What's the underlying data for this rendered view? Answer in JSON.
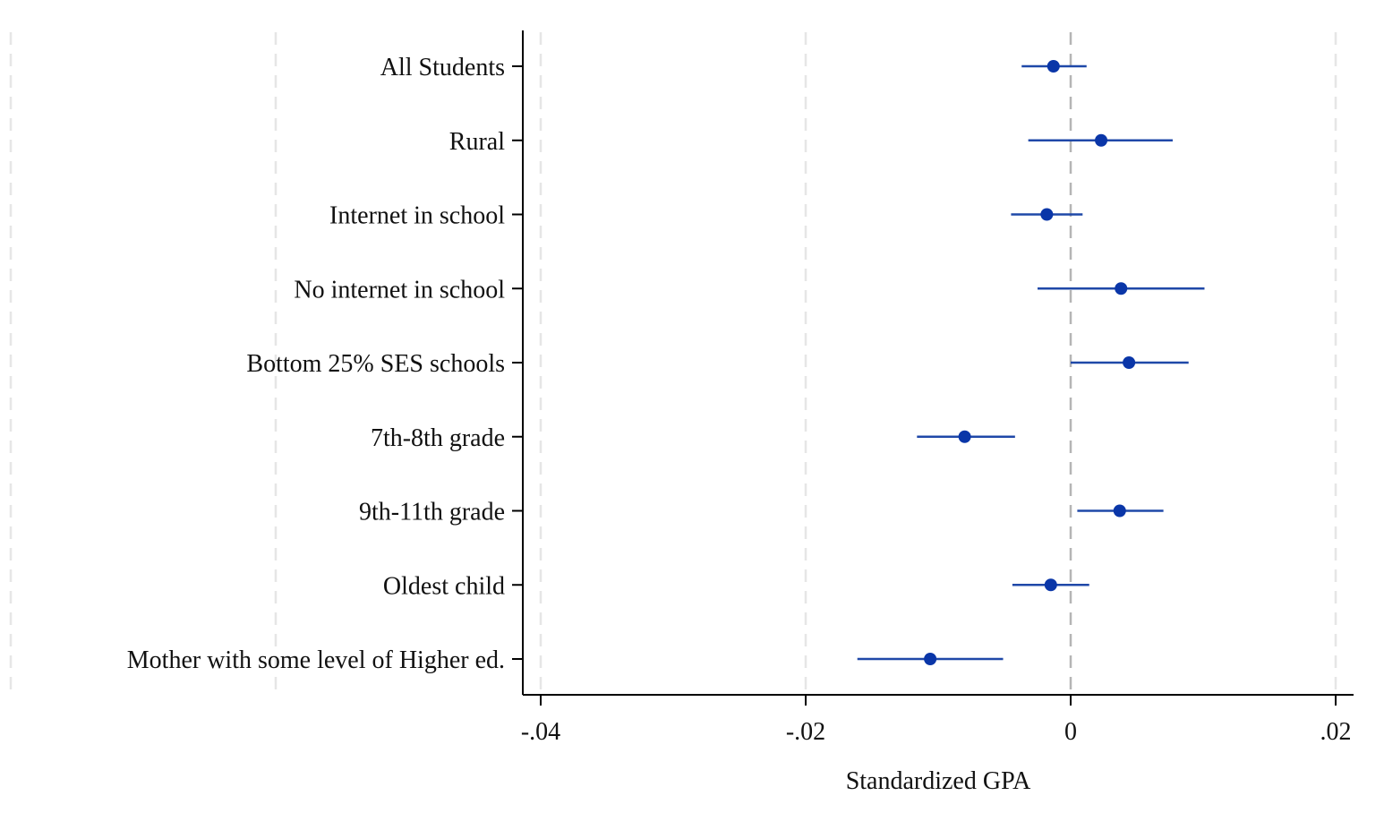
{
  "chart_data": {
    "type": "scatter",
    "subtype": "coefficient-plot-with-confidence-intervals",
    "orientation": "horizontal",
    "title": "",
    "xlabel": "Standardized GPA",
    "ylabel": "",
    "xlim": [
      -0.042,
      0.0215
    ],
    "x_ticks": [
      {
        "value": -0.04,
        "label": "-.04"
      },
      {
        "value": -0.02,
        "label": "-.02"
      },
      {
        "value": 0,
        "label": "0"
      },
      {
        "value": 0.02,
        "label": ".02"
      }
    ],
    "grid": {
      "vertical_dashed": true,
      "horizontal": false
    },
    "reference_line": {
      "x": 0,
      "style": "dashed"
    },
    "colors": {
      "marker": "#0a36a8",
      "ci_line": "#1f48a8",
      "grid": "#e6e6e6",
      "reference": "#b5b5b5",
      "axis": "#000000"
    },
    "categories": [
      "All Students",
      "Rural",
      "Internet in school",
      "No internet in school",
      "Bottom 25% SES schools",
      "7th-8th grade",
      "9th-11th grade",
      "Oldest child",
      "Mother with some level of Higher ed."
    ],
    "series": [
      {
        "points": [
          {
            "category": "All Students",
            "estimate": -0.0013,
            "ci_low": -0.0037,
            "ci_high": 0.0012
          },
          {
            "category": "Rural",
            "estimate": 0.0023,
            "ci_low": -0.0032,
            "ci_high": 0.0077
          },
          {
            "category": "Internet in school",
            "estimate": -0.0018,
            "ci_low": -0.0045,
            "ci_high": 0.0009
          },
          {
            "category": "No internet in school",
            "estimate": 0.0038,
            "ci_low": -0.0025,
            "ci_high": 0.0101
          },
          {
            "category": "Bottom 25% SES schools",
            "estimate": 0.0044,
            "ci_low": 0.0,
            "ci_high": 0.0089
          },
          {
            "category": "7th-8th grade",
            "estimate": -0.008,
            "ci_low": -0.0116,
            "ci_high": -0.0042
          },
          {
            "category": "9th-11th grade",
            "estimate": 0.0037,
            "ci_low": 0.0005,
            "ci_high": 0.007
          },
          {
            "category": "Oldest child",
            "estimate": -0.0015,
            "ci_low": -0.0044,
            "ci_high": 0.0014
          },
          {
            "category": "Mother with some level of Higher ed.",
            "estimate": -0.0106,
            "ci_low": -0.0161,
            "ci_high": -0.0051
          }
        ]
      }
    ]
  }
}
